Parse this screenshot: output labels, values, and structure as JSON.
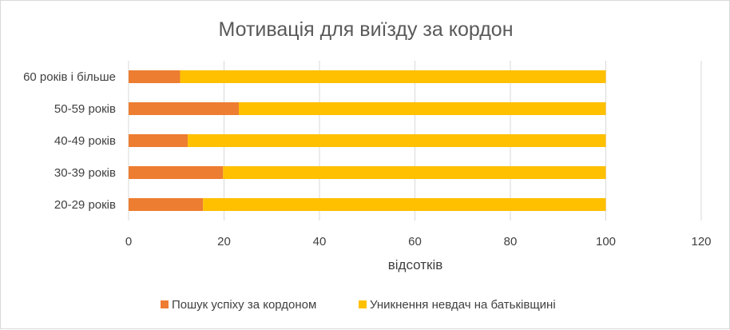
{
  "chart_data": {
    "type": "bar",
    "orientation": "horizontal",
    "stacked": true,
    "title": "Мотивація для виїзду за кордон",
    "xlabel": "відсотків",
    "ylabel": "",
    "xlim": [
      0,
      120
    ],
    "xticks": [
      "0",
      "20",
      "40",
      "60",
      "80",
      "100",
      "120"
    ],
    "grid": true,
    "legend_position": "bottom",
    "categories": [
      "60 років і більше",
      "50-59 років",
      "40-49 років",
      "30-39 років",
      "20-29 років"
    ],
    "series": [
      {
        "name": "Пошук успіху за кордоном",
        "color": "#ed7d31",
        "values": [
          10.8,
          23.1,
          12.4,
          19.8,
          15.6
        ]
      },
      {
        "name": "Уникнення невдач на батьківщині",
        "color": "#ffc000",
        "values": [
          89.2,
          76.9,
          87.6,
          80.2,
          84.4
        ]
      }
    ]
  }
}
